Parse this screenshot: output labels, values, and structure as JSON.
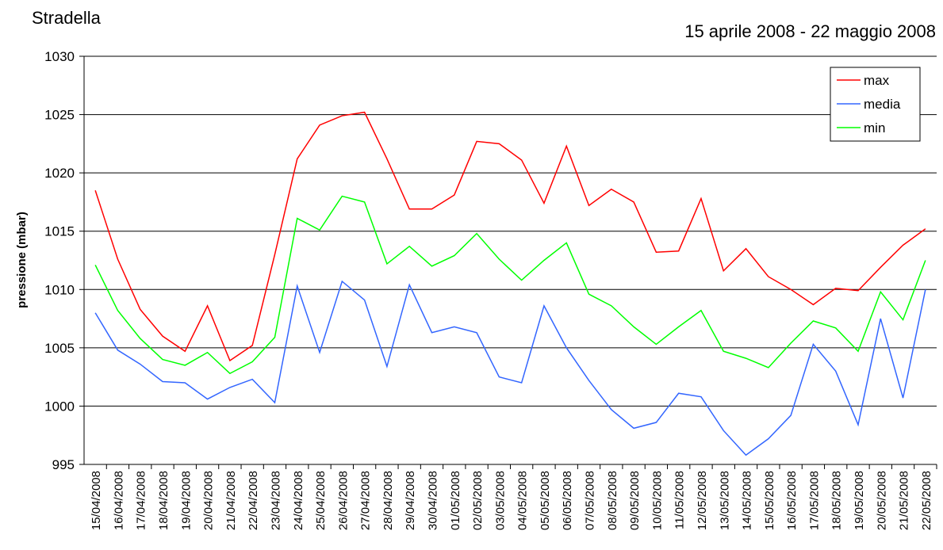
{
  "chart_data": {
    "type": "line",
    "title": "Stradella",
    "subtitle": "15 aprile 2008 - 22 maggio 2008",
    "y_label": "pressione (mbar)",
    "categories": [
      "15/04/2008",
      "16/04/2008",
      "17/04/2008",
      "18/04/2008",
      "19/04/2008",
      "20/04/2008",
      "21/04/2008",
      "22/04/2008",
      "23/04/2008",
      "24/04/2008",
      "25/04/2008",
      "26/04/2008",
      "27/04/2008",
      "28/04/2008",
      "29/04/2008",
      "30/04/2008",
      "01/05/2008",
      "02/05/2008",
      "03/05/2008",
      "04/05/2008",
      "05/05/2008",
      "06/05/2008",
      "07/05/2008",
      "08/05/2008",
      "09/05/2008",
      "10/05/2008",
      "11/05/2008",
      "12/05/2008",
      "13/05/2008",
      "14/05/2008",
      "15/05/2008",
      "16/05/2008",
      "17/05/2008",
      "18/05/2008",
      "19/05/2008",
      "20/05/2008",
      "21/05/2008",
      "22/05/2008"
    ],
    "series": [
      {
        "name": "max",
        "color": "#ff0000",
        "values": [
          1018.5,
          1012.6,
          1008.3,
          1006.0,
          1004.7,
          1008.6,
          1003.9,
          1005.2,
          1013.0,
          1021.2,
          1024.1,
          1024.9,
          1025.2,
          1021.2,
          1016.9,
          1016.9,
          1018.1,
          1022.7,
          1022.5,
          1021.1,
          1017.4,
          1022.3,
          1017.2,
          1018.6,
          1017.5,
          1013.2,
          1013.3,
          1017.8,
          1011.6,
          1013.5,
          1011.1,
          1010.0,
          1008.7,
          1010.1,
          1009.9,
          1011.9,
          1013.8,
          1015.2
        ]
      },
      {
        "name": "media",
        "color": "#3366ff",
        "values": [
          1008.0,
          1004.8,
          1003.6,
          1002.1,
          1002.0,
          1000.6,
          1001.6,
          1002.3,
          1000.3,
          1010.3,
          1004.6,
          1010.7,
          1009.1,
          1003.4,
          1010.4,
          1006.3,
          1006.8,
          1006.3,
          1002.5,
          1002.0,
          1008.6,
          1005.0,
          1002.2,
          999.7,
          998.1,
          998.6,
          1001.1,
          1000.8,
          997.9,
          995.8,
          997.2,
          999.2,
          1005.3,
          1003.0,
          998.4,
          1007.5,
          1000.7,
          1010.0
        ]
      },
      {
        "name": "min",
        "color": "#00ff00",
        "values": [
          1012.1,
          1008.2,
          1005.8,
          1004.0,
          1003.5,
          1004.6,
          1002.8,
          1003.8,
          1005.9,
          1016.1,
          1015.1,
          1018.0,
          1017.5,
          1012.2,
          1013.7,
          1012.0,
          1012.9,
          1014.8,
          1012.6,
          1010.8,
          1012.5,
          1014.0,
          1009.6,
          1008.6,
          1006.8,
          1005.3,
          1006.8,
          1008.2,
          1004.7,
          1004.1,
          1003.3,
          1005.4,
          1007.3,
          1006.7,
          1004.7,
          1009.8,
          1007.4,
          1012.5
        ]
      }
    ],
    "ylim": [
      995,
      1030
    ],
    "yticks": [
      995,
      1000,
      1005,
      1010,
      1015,
      1020,
      1025,
      1030
    ],
    "grid": true,
    "legend": "top-right"
  }
}
